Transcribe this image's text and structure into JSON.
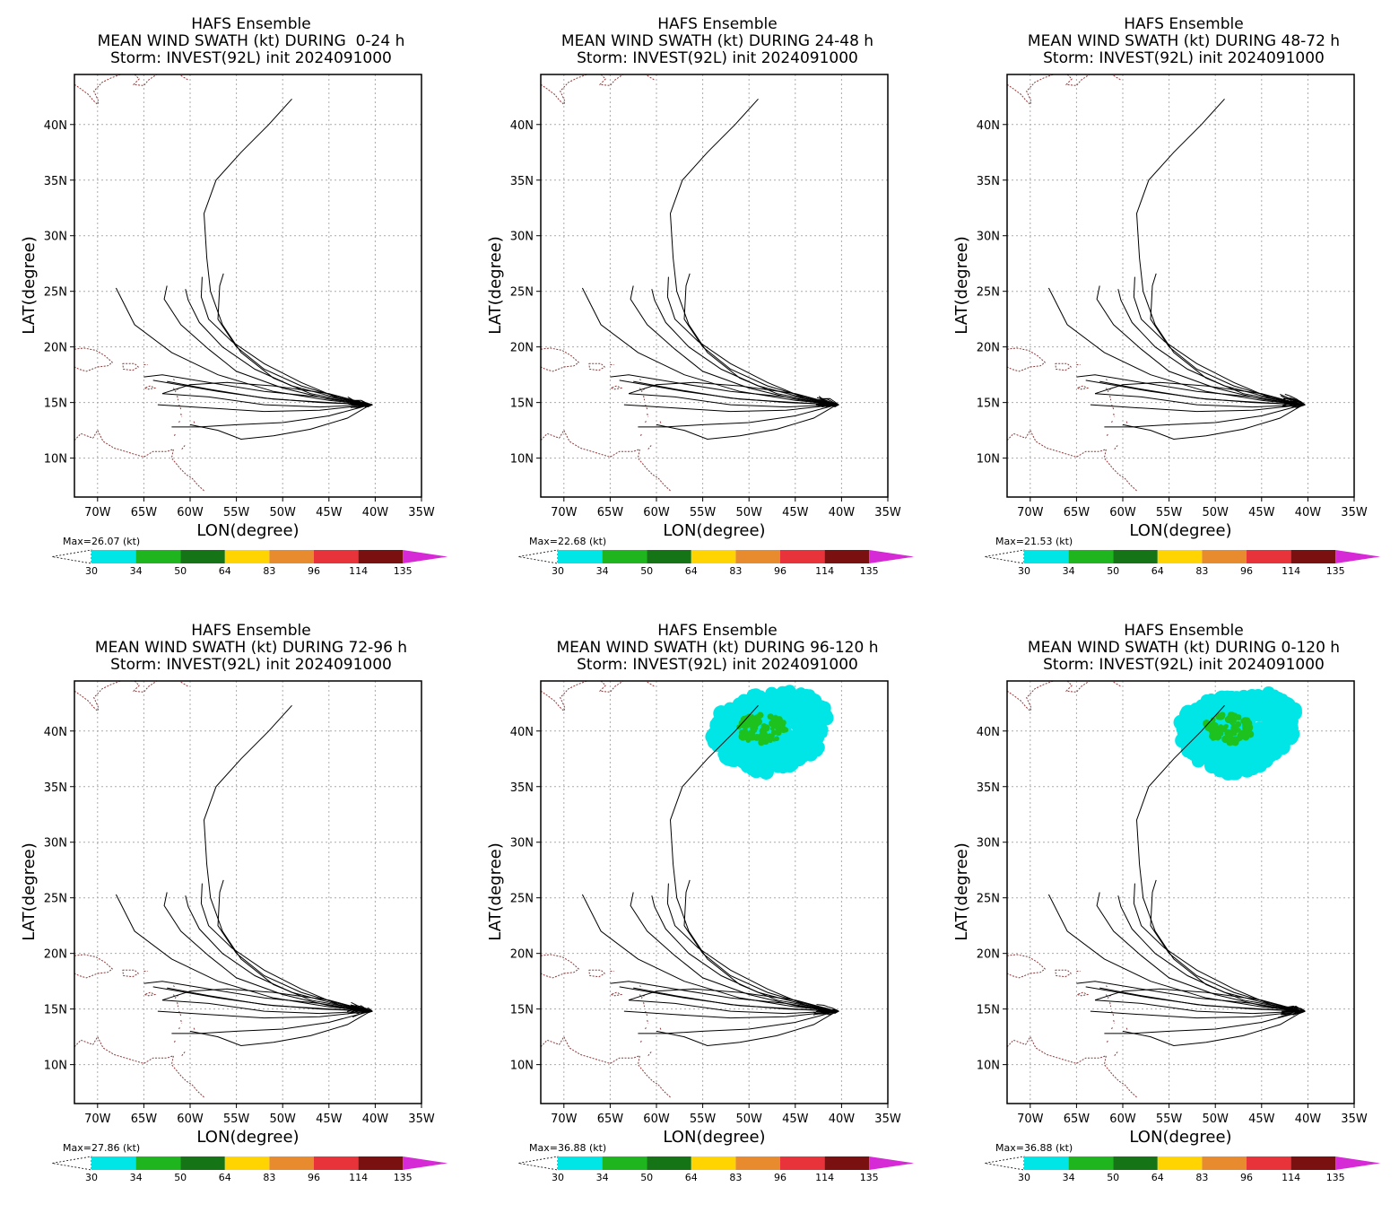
{
  "colors": {
    "track": "#000000",
    "coast": "#8b3a3a",
    "grid": "#aaaaaa",
    "swath_34": "#1ec21e",
    "swath_30": "#00e6e6"
  },
  "colorbar": {
    "levels": [
      "30",
      "34",
      "50",
      "64",
      "83",
      "96",
      "114",
      "135"
    ],
    "colors": [
      "#00e5e5",
      "#1fb51f",
      "#157415",
      "#ffd400",
      "#e88a2e",
      "#e8333a",
      "#7a1010",
      "#d62ad6"
    ]
  },
  "axes": {
    "xlabel": "LON(degree)",
    "ylabel": "LAT(degree)",
    "xticks": [
      "70W",
      "65W",
      "60W",
      "55W",
      "50W",
      "45W",
      "40W",
      "35W"
    ],
    "yticks": [
      "40N",
      "35N",
      "30N",
      "25N",
      "20N",
      "15N",
      "10N"
    ]
  },
  "panels": [
    {
      "title1": "HAFS Ensemble",
      "title2": "MEAN WIND SWATH (kt) DURING  0-24 h",
      "title3": "Storm: INVEST(92L) init 2024091000",
      "max": "Max=26.07 (kt)",
      "swath": false
    },
    {
      "title1": "HAFS Ensemble",
      "title2": "MEAN WIND SWATH (kt) DURING 24-48 h",
      "title3": "Storm: INVEST(92L) init 2024091000",
      "max": "Max=22.68 (kt)",
      "swath": false
    },
    {
      "title1": "HAFS Ensemble",
      "title2": "MEAN WIND SWATH (kt) DURING 48-72 h",
      "title3": "Storm: INVEST(92L) init 2024091000",
      "max": "Max=21.53 (kt)",
      "swath": false
    },
    {
      "title1": "HAFS Ensemble",
      "title2": "MEAN WIND SWATH (kt) DURING 72-96 h",
      "title3": "Storm: INVEST(92L) init 2024091000",
      "max": "Max=27.86 (kt)",
      "swath": false
    },
    {
      "title1": "HAFS Ensemble",
      "title2": "MEAN WIND SWATH (kt) DURING 96-120 h",
      "title3": "Storm: INVEST(92L) init 2024091000",
      "max": "Max=36.88 (kt)",
      "swath": true
    },
    {
      "title1": "HAFS Ensemble",
      "title2": "MEAN WIND SWATH (kt) DURING 0-120 h",
      "title3": "Storm: INVEST(92L) init 2024091000",
      "max": "Max=36.88 (kt)",
      "swath": true
    }
  ],
  "tracks": [
    [
      [
        -40.5,
        14.8
      ],
      [
        -43,
        15.2
      ],
      [
        -47,
        15.8
      ],
      [
        -51,
        17.2
      ],
      [
        -54.5,
        19.5
      ],
      [
        -56.5,
        22
      ],
      [
        -57.8,
        25
      ],
      [
        -58.2,
        28
      ],
      [
        -58.5,
        32
      ],
      [
        -57.2,
        35
      ],
      [
        -54.5,
        37.5
      ],
      [
        -51.5,
        40
      ],
      [
        -49,
        42.3
      ]
    ],
    [
      [
        -40.5,
        14.8
      ],
      [
        -44,
        15.5
      ],
      [
        -48,
        16.5
      ],
      [
        -52,
        18
      ],
      [
        -55,
        20
      ],
      [
        -57,
        22.5
      ],
      [
        -56.8,
        25.5
      ],
      [
        -56.4,
        26.6
      ]
    ],
    [
      [
        -40.5,
        14.8
      ],
      [
        -44,
        15.4
      ],
      [
        -48,
        16.8
      ],
      [
        -52,
        18.5
      ],
      [
        -55.5,
        20.5
      ],
      [
        -58,
        22.5
      ],
      [
        -58.8,
        24.5
      ],
      [
        -58.7,
        26.3
      ]
    ],
    [
      [
        -40.5,
        14.8
      ],
      [
        -44,
        15.4
      ],
      [
        -49,
        16.5
      ],
      [
        -53,
        18
      ],
      [
        -56.5,
        20
      ],
      [
        -59,
        22.2
      ],
      [
        -60.2,
        24.2
      ],
      [
        -60.5,
        25.2
      ]
    ],
    [
      [
        -40.5,
        14.8
      ],
      [
        -45,
        15.3
      ],
      [
        -50,
        16.3
      ],
      [
        -55,
        17.8
      ],
      [
        -58,
        19.8
      ],
      [
        -61,
        22
      ],
      [
        -62.8,
        24.3
      ],
      [
        -62.5,
        25.5
      ]
    ],
    [
      [
        -40.5,
        14.8
      ],
      [
        -45,
        15.2
      ],
      [
        -51,
        16
      ],
      [
        -57,
        17.5
      ],
      [
        -62,
        19.5
      ],
      [
        -66,
        22
      ],
      [
        -68,
        25.3
      ]
    ],
    [
      [
        -40.5,
        14.8
      ],
      [
        -45,
        15.0
      ],
      [
        -51,
        15.3
      ],
      [
        -57,
        16
      ],
      [
        -64,
        17
      ]
    ],
    [
      [
        -40.5,
        14.8
      ],
      [
        -46,
        15.0
      ],
      [
        -52,
        15.4
      ],
      [
        -58,
        16.2
      ],
      [
        -62.5,
        16.9
      ]
    ],
    [
      [
        -40.5,
        14.8
      ],
      [
        -46,
        14.6
      ],
      [
        -52,
        14.8
      ],
      [
        -58,
        15.5
      ],
      [
        -63,
        15.8
      ]
    ],
    [
      [
        -40.5,
        14.8
      ],
      [
        -46,
        14.3
      ],
      [
        -52,
        14.2
      ],
      [
        -58,
        14.5
      ],
      [
        -63.5,
        14.8
      ]
    ],
    [
      [
        -40.5,
        14.8
      ],
      [
        -45,
        13.8
      ],
      [
        -50,
        13.2
      ],
      [
        -55,
        13
      ],
      [
        -59,
        12.8
      ],
      [
        -62,
        12.8
      ]
    ],
    [
      [
        -40.5,
        14.8
      ],
      [
        -43,
        13.6
      ],
      [
        -47,
        12.6
      ],
      [
        -51,
        12
      ],
      [
        -54.5,
        11.7
      ],
      [
        -57,
        12.5
      ],
      [
        -60,
        13
      ]
    ],
    [
      [
        -40.5,
        14.8
      ],
      [
        -45,
        15.8
      ],
      [
        -51,
        16.5
      ],
      [
        -56,
        16.8
      ],
      [
        -60,
        16.6
      ],
      [
        -63,
        15.8
      ]
    ],
    [
      [
        -40.5,
        14.8
      ],
      [
        -46,
        15.5
      ],
      [
        -52,
        16.0
      ],
      [
        -58,
        16.8
      ],
      [
        -63,
        17.5
      ],
      [
        -65,
        17.3
      ]
    ]
  ]
}
